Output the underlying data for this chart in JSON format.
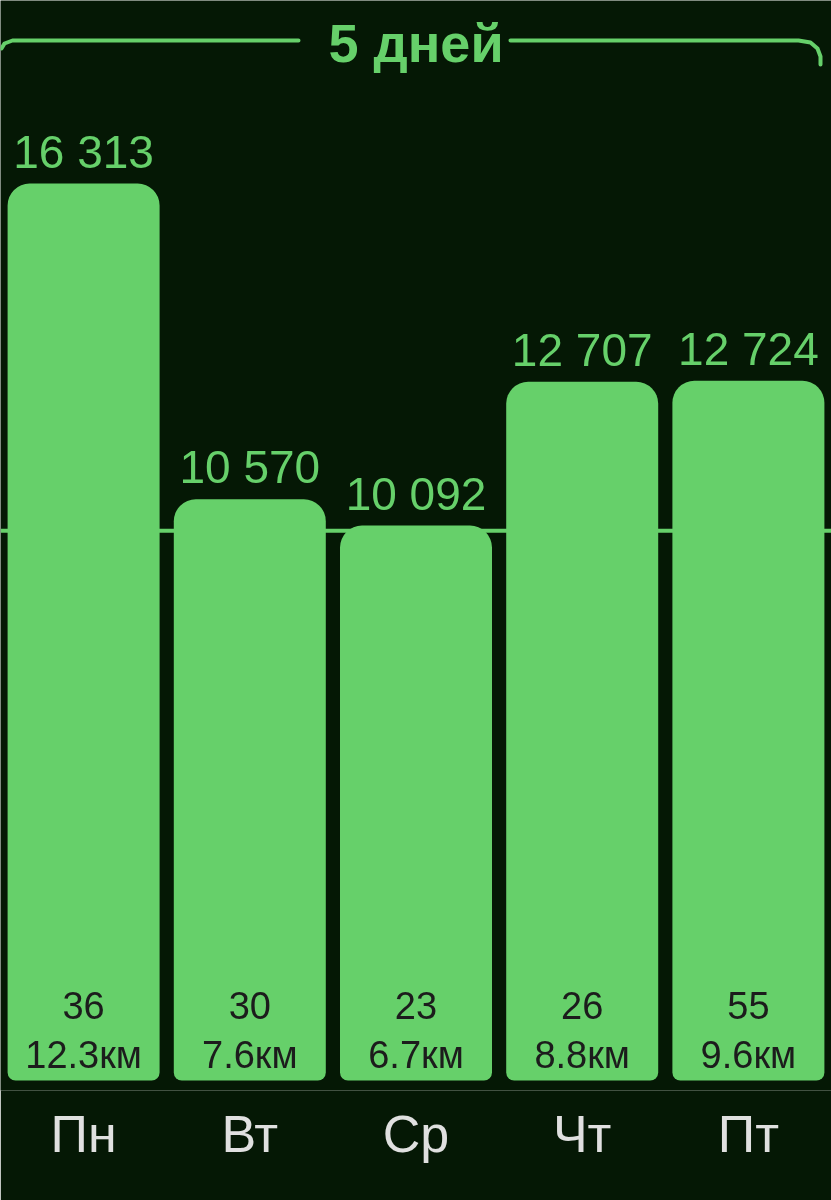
{
  "chart_data": {
    "type": "bar",
    "title": "5 дней",
    "categories": [
      "Пн",
      "Вт",
      "Ср",
      "Чт",
      "Пт"
    ],
    "values": [
      16313,
      10570,
      10092,
      12707,
      12724
    ],
    "color": "#66d06a",
    "value_labels": [
      "16 313",
      "10 570",
      "10 092",
      "12 707",
      "12 724"
    ],
    "ref_lines": [
      {
        "axis": "y",
        "value": 10000,
        "color": "#66d06a"
      }
    ],
    "annotations": [
      "36",
      "12.3км",
      "30",
      "7.6км",
      "23",
      "6.7км",
      "26",
      "8.8км",
      "55",
      "9.6км"
    ]
  }
}
